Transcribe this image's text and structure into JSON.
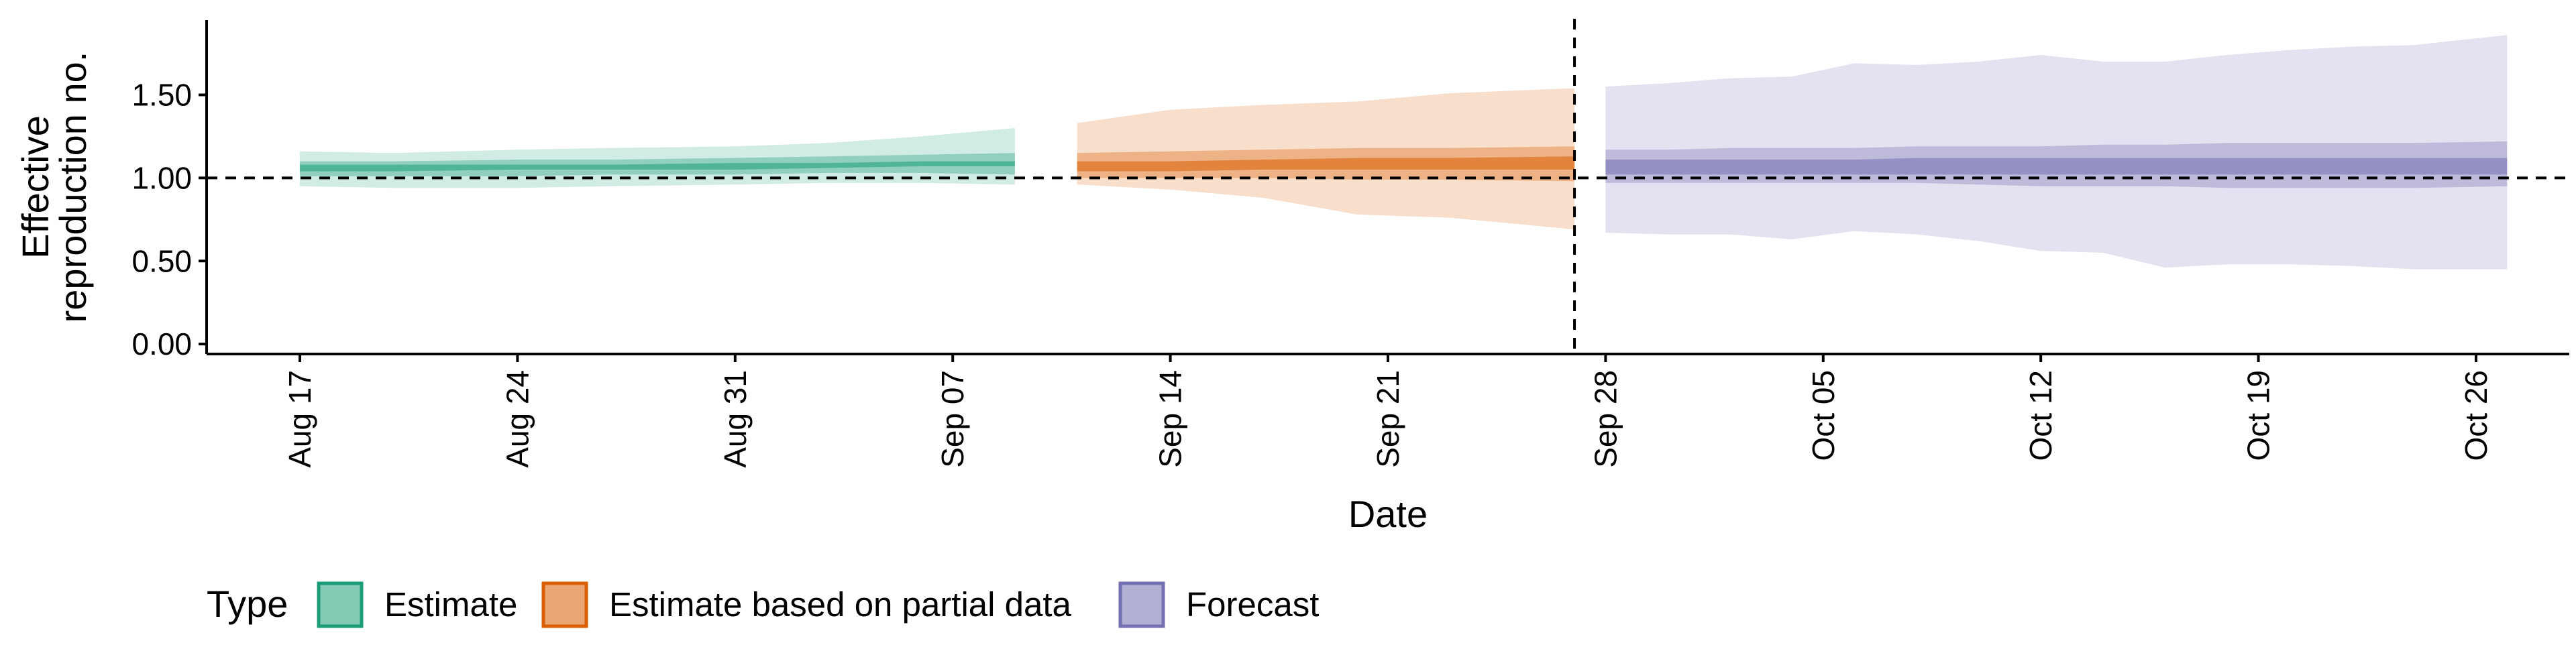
{
  "chart_data": {
    "type": "area",
    "title": "",
    "xlabel": "Date",
    "ylabel": [
      "Effective",
      "reproduction no."
    ],
    "x_range": [
      "2020-08-14",
      "2020-10-29"
    ],
    "ylim": [
      -0.06,
      1.95
    ],
    "x_ticks": [
      {
        "date": "2020-08-17",
        "label": "Aug 17"
      },
      {
        "date": "2020-08-24",
        "label": "Aug 24"
      },
      {
        "date": "2020-08-31",
        "label": "Aug 31"
      },
      {
        "date": "2020-09-07",
        "label": "Sep 07"
      },
      {
        "date": "2020-09-14",
        "label": "Sep 14"
      },
      {
        "date": "2020-09-21",
        "label": "Sep 21"
      },
      {
        "date": "2020-09-28",
        "label": "Sep 28"
      },
      {
        "date": "2020-10-05",
        "label": "Oct 05"
      },
      {
        "date": "2020-10-12",
        "label": "Oct 12"
      },
      {
        "date": "2020-10-19",
        "label": "Oct 19"
      },
      {
        "date": "2020-10-26",
        "label": "Oct 26"
      }
    ],
    "y_ticks": [
      {
        "value": 0,
        "label": "0.00"
      },
      {
        "value": 0.5,
        "label": "0.50"
      },
      {
        "value": 1,
        "label": "1.00"
      },
      {
        "value": 1.5,
        "label": "1.50"
      }
    ],
    "reference_lines": [
      {
        "orientation": "horizontal",
        "value": 1.0,
        "style": "dashed"
      },
      {
        "orientation": "vertical",
        "value": "2020-09-27",
        "style": "dashed"
      }
    ],
    "grid": false,
    "legend": {
      "title": "Type",
      "position": "bottom-left",
      "entries": [
        {
          "label": "Estimate",
          "color": "#1b9e77"
        },
        {
          "label": "Estimate based on partial data",
          "color": "#d95f02"
        },
        {
          "label": "Forecast",
          "color": "#7570b3"
        }
      ]
    },
    "band_opacities": [
      0.2,
      0.35,
      0.55
    ],
    "series": [
      {
        "type_label": "Estimate",
        "color": "#1b9e77",
        "x": [
          "2020-08-17",
          "2020-08-20",
          "2020-08-24",
          "2020-08-27",
          "2020-08-31",
          "2020-09-03",
          "2020-09-06",
          "2020-09-09"
        ],
        "bands": [
          {
            "lower": [
              0.95,
              0.94,
              0.94,
              0.95,
              0.96,
              0.97,
              0.97,
              0.96
            ],
            "upper": [
              1.16,
              1.15,
              1.17,
              1.18,
              1.19,
              1.21,
              1.25,
              1.3
            ]
          },
          {
            "lower": [
              1.01,
              1.01,
              1.01,
              1.02,
              1.02,
              1.03,
              1.03,
              1.02
            ],
            "upper": [
              1.1,
              1.1,
              1.11,
              1.11,
              1.12,
              1.13,
              1.14,
              1.15
            ]
          },
          {
            "lower": [
              1.04,
              1.04,
              1.05,
              1.05,
              1.05,
              1.06,
              1.07,
              1.07
            ],
            "upper": [
              1.08,
              1.08,
              1.08,
              1.08,
              1.09,
              1.09,
              1.1,
              1.1
            ]
          }
        ]
      },
      {
        "type_label": "Estimate based on partial data",
        "color": "#d95f02",
        "x": [
          "2020-09-11",
          "2020-09-14",
          "2020-09-17",
          "2020-09-20",
          "2020-09-23",
          "2020-09-27"
        ],
        "bands": [
          {
            "lower": [
              0.96,
              0.93,
              0.88,
              0.78,
              0.76,
              0.69
            ],
            "upper": [
              1.33,
              1.41,
              1.44,
              1.46,
              1.51,
              1.54
            ]
          },
          {
            "lower": [
              1.0,
              1.0,
              1.0,
              0.99,
              0.99,
              0.98
            ],
            "upper": [
              1.15,
              1.16,
              1.17,
              1.18,
              1.18,
              1.19
            ]
          },
          {
            "lower": [
              1.04,
              1.04,
              1.05,
              1.05,
              1.05,
              1.05
            ],
            "upper": [
              1.1,
              1.1,
              1.11,
              1.12,
              1.12,
              1.13
            ]
          }
        ]
      },
      {
        "type_label": "Forecast",
        "color": "#7570b3",
        "x": [
          "2020-09-28",
          "2020-09-30",
          "2020-10-02",
          "2020-10-04",
          "2020-10-06",
          "2020-10-08",
          "2020-10-10",
          "2020-10-12",
          "2020-10-14",
          "2020-10-16",
          "2020-10-18",
          "2020-10-20",
          "2020-10-22",
          "2020-10-24",
          "2020-10-27"
        ],
        "bands": [
          {
            "lower": [
              0.67,
              0.66,
              0.66,
              0.63,
              0.68,
              0.66,
              0.62,
              0.56,
              0.55,
              0.46,
              0.48,
              0.48,
              0.47,
              0.45,
              0.45
            ],
            "upper": [
              1.55,
              1.57,
              1.6,
              1.61,
              1.69,
              1.68,
              1.7,
              1.74,
              1.7,
              1.7,
              1.74,
              1.77,
              1.79,
              1.8,
              1.86
            ]
          },
          {
            "lower": [
              0.97,
              0.97,
              0.97,
              0.97,
              0.97,
              0.97,
              0.96,
              0.95,
              0.95,
              0.95,
              0.94,
              0.94,
              0.94,
              0.94,
              0.95
            ],
            "upper": [
              1.17,
              1.17,
              1.18,
              1.18,
              1.18,
              1.19,
              1.19,
              1.19,
              1.2,
              1.2,
              1.21,
              1.21,
              1.21,
              1.21,
              1.22
            ]
          },
          {
            "lower": [
              1.02,
              1.02,
              1.02,
              1.02,
              1.02,
              1.02,
              1.02,
              1.02,
              1.02,
              1.02,
              1.02,
              1.02,
              1.02,
              1.02,
              1.02
            ],
            "upper": [
              1.11,
              1.11,
              1.11,
              1.11,
              1.11,
              1.12,
              1.12,
              1.12,
              1.12,
              1.12,
              1.12,
              1.12,
              1.12,
              1.12,
              1.12
            ]
          }
        ]
      }
    ]
  }
}
